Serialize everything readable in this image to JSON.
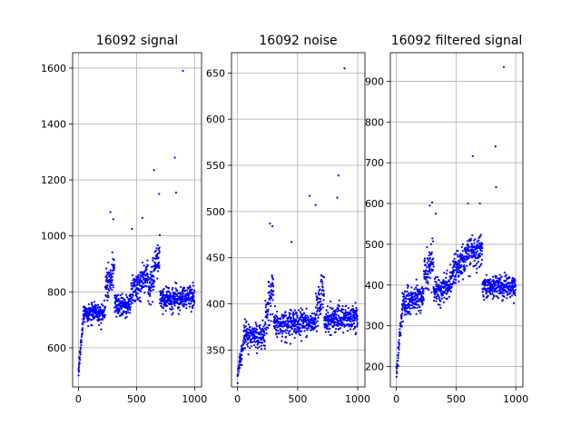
{
  "chart_data": [
    {
      "type": "scatter",
      "title": "16092 signal",
      "xlabel": "",
      "ylabel": "",
      "xlim": [
        -50,
        1060
      ],
      "ylim": [
        460,
        1655
      ],
      "xticks": [
        0,
        500,
        1000
      ],
      "yticks": [
        600,
        800,
        1000,
        1200,
        1400,
        1600
      ],
      "grid": true,
      "color": "#0000ff",
      "n_points": 1000,
      "segments": [
        {
          "x0": 0,
          "x1": 40,
          "y0": 510,
          "y1": 700,
          "noise": 30
        },
        {
          "x0": 40,
          "x1": 230,
          "y0": 725,
          "y1": 725,
          "noise": 40
        },
        {
          "x0": 230,
          "x1": 310,
          "y0": 800,
          "y1": 880,
          "noise": 70
        },
        {
          "x0": 310,
          "x1": 450,
          "y0": 745,
          "y1": 760,
          "noise": 45
        },
        {
          "x0": 450,
          "x1": 600,
          "y0": 790,
          "y1": 860,
          "noise": 55
        },
        {
          "x0": 600,
          "x1": 700,
          "y0": 800,
          "y1": 940,
          "noise": 70
        },
        {
          "x0": 700,
          "x1": 1000,
          "y0": 775,
          "y1": 780,
          "noise": 45
        }
      ],
      "outliers": [
        [
          275,
          1085
        ],
        [
          300,
          1060
        ],
        [
          460,
          1025
        ],
        [
          550,
          1065
        ],
        [
          650,
          1235
        ],
        [
          695,
          1150
        ],
        [
          830,
          1280
        ],
        [
          840,
          1155
        ],
        [
          900,
          1590
        ]
      ]
    },
    {
      "type": "scatter",
      "title": "16092 noise",
      "xlabel": "",
      "ylabel": "",
      "xlim": [
        -50,
        1060
      ],
      "ylim": [
        310,
        672
      ],
      "xticks": [
        0,
        500,
        1000
      ],
      "yticks": [
        350,
        400,
        450,
        500,
        550,
        600,
        650
      ],
      "grid": true,
      "color": "#0000ff",
      "n_points": 1000,
      "segments": [
        {
          "x0": 0,
          "x1": 50,
          "y0": 325,
          "y1": 355,
          "noise": 12
        },
        {
          "x0": 50,
          "x1": 230,
          "y0": 365,
          "y1": 365,
          "noise": 15
        },
        {
          "x0": 230,
          "x1": 300,
          "y0": 380,
          "y1": 420,
          "noise": 25
        },
        {
          "x0": 300,
          "x1": 650,
          "y0": 378,
          "y1": 380,
          "noise": 15
        },
        {
          "x0": 650,
          "x1": 720,
          "y0": 385,
          "y1": 420,
          "noise": 25
        },
        {
          "x0": 720,
          "x1": 1000,
          "y0": 382,
          "y1": 385,
          "noise": 15
        }
      ],
      "outliers": [
        [
          270,
          487
        ],
        [
          290,
          484
        ],
        [
          450,
          467
        ],
        [
          600,
          517
        ],
        [
          650,
          507
        ],
        [
          830,
          515
        ],
        [
          840,
          539
        ],
        [
          890,
          655
        ]
      ]
    },
    {
      "type": "scatter",
      "title": "16092 filtered signal",
      "xlabel": "",
      "ylabel": "",
      "xlim": [
        -50,
        1060
      ],
      "ylim": [
        150,
        970
      ],
      "xticks": [
        0,
        500,
        1000
      ],
      "yticks": [
        200,
        300,
        400,
        500,
        600,
        700,
        800,
        900
      ],
      "grid": true,
      "color": "#0000ff",
      "n_points": 1000,
      "segments": [
        {
          "x0": 0,
          "x1": 50,
          "y0": 185,
          "y1": 345,
          "noise": 25
        },
        {
          "x0": 50,
          "x1": 230,
          "y0": 360,
          "y1": 370,
          "noise": 35
        },
        {
          "x0": 230,
          "x1": 310,
          "y0": 420,
          "y1": 460,
          "noise": 50
        },
        {
          "x0": 310,
          "x1": 450,
          "y0": 385,
          "y1": 395,
          "noise": 35
        },
        {
          "x0": 450,
          "x1": 650,
          "y0": 420,
          "y1": 490,
          "noise": 45
        },
        {
          "x0": 650,
          "x1": 720,
          "y0": 470,
          "y1": 500,
          "noise": 45
        },
        {
          "x0": 720,
          "x1": 1000,
          "y0": 395,
          "y1": 395,
          "noise": 30
        }
      ],
      "outliers": [
        [
          280,
          595
        ],
        [
          300,
          603
        ],
        [
          330,
          575
        ],
        [
          600,
          600
        ],
        [
          640,
          716
        ],
        [
          700,
          600
        ],
        [
          830,
          740
        ],
        [
          835,
          640
        ],
        [
          900,
          935
        ]
      ]
    }
  ]
}
